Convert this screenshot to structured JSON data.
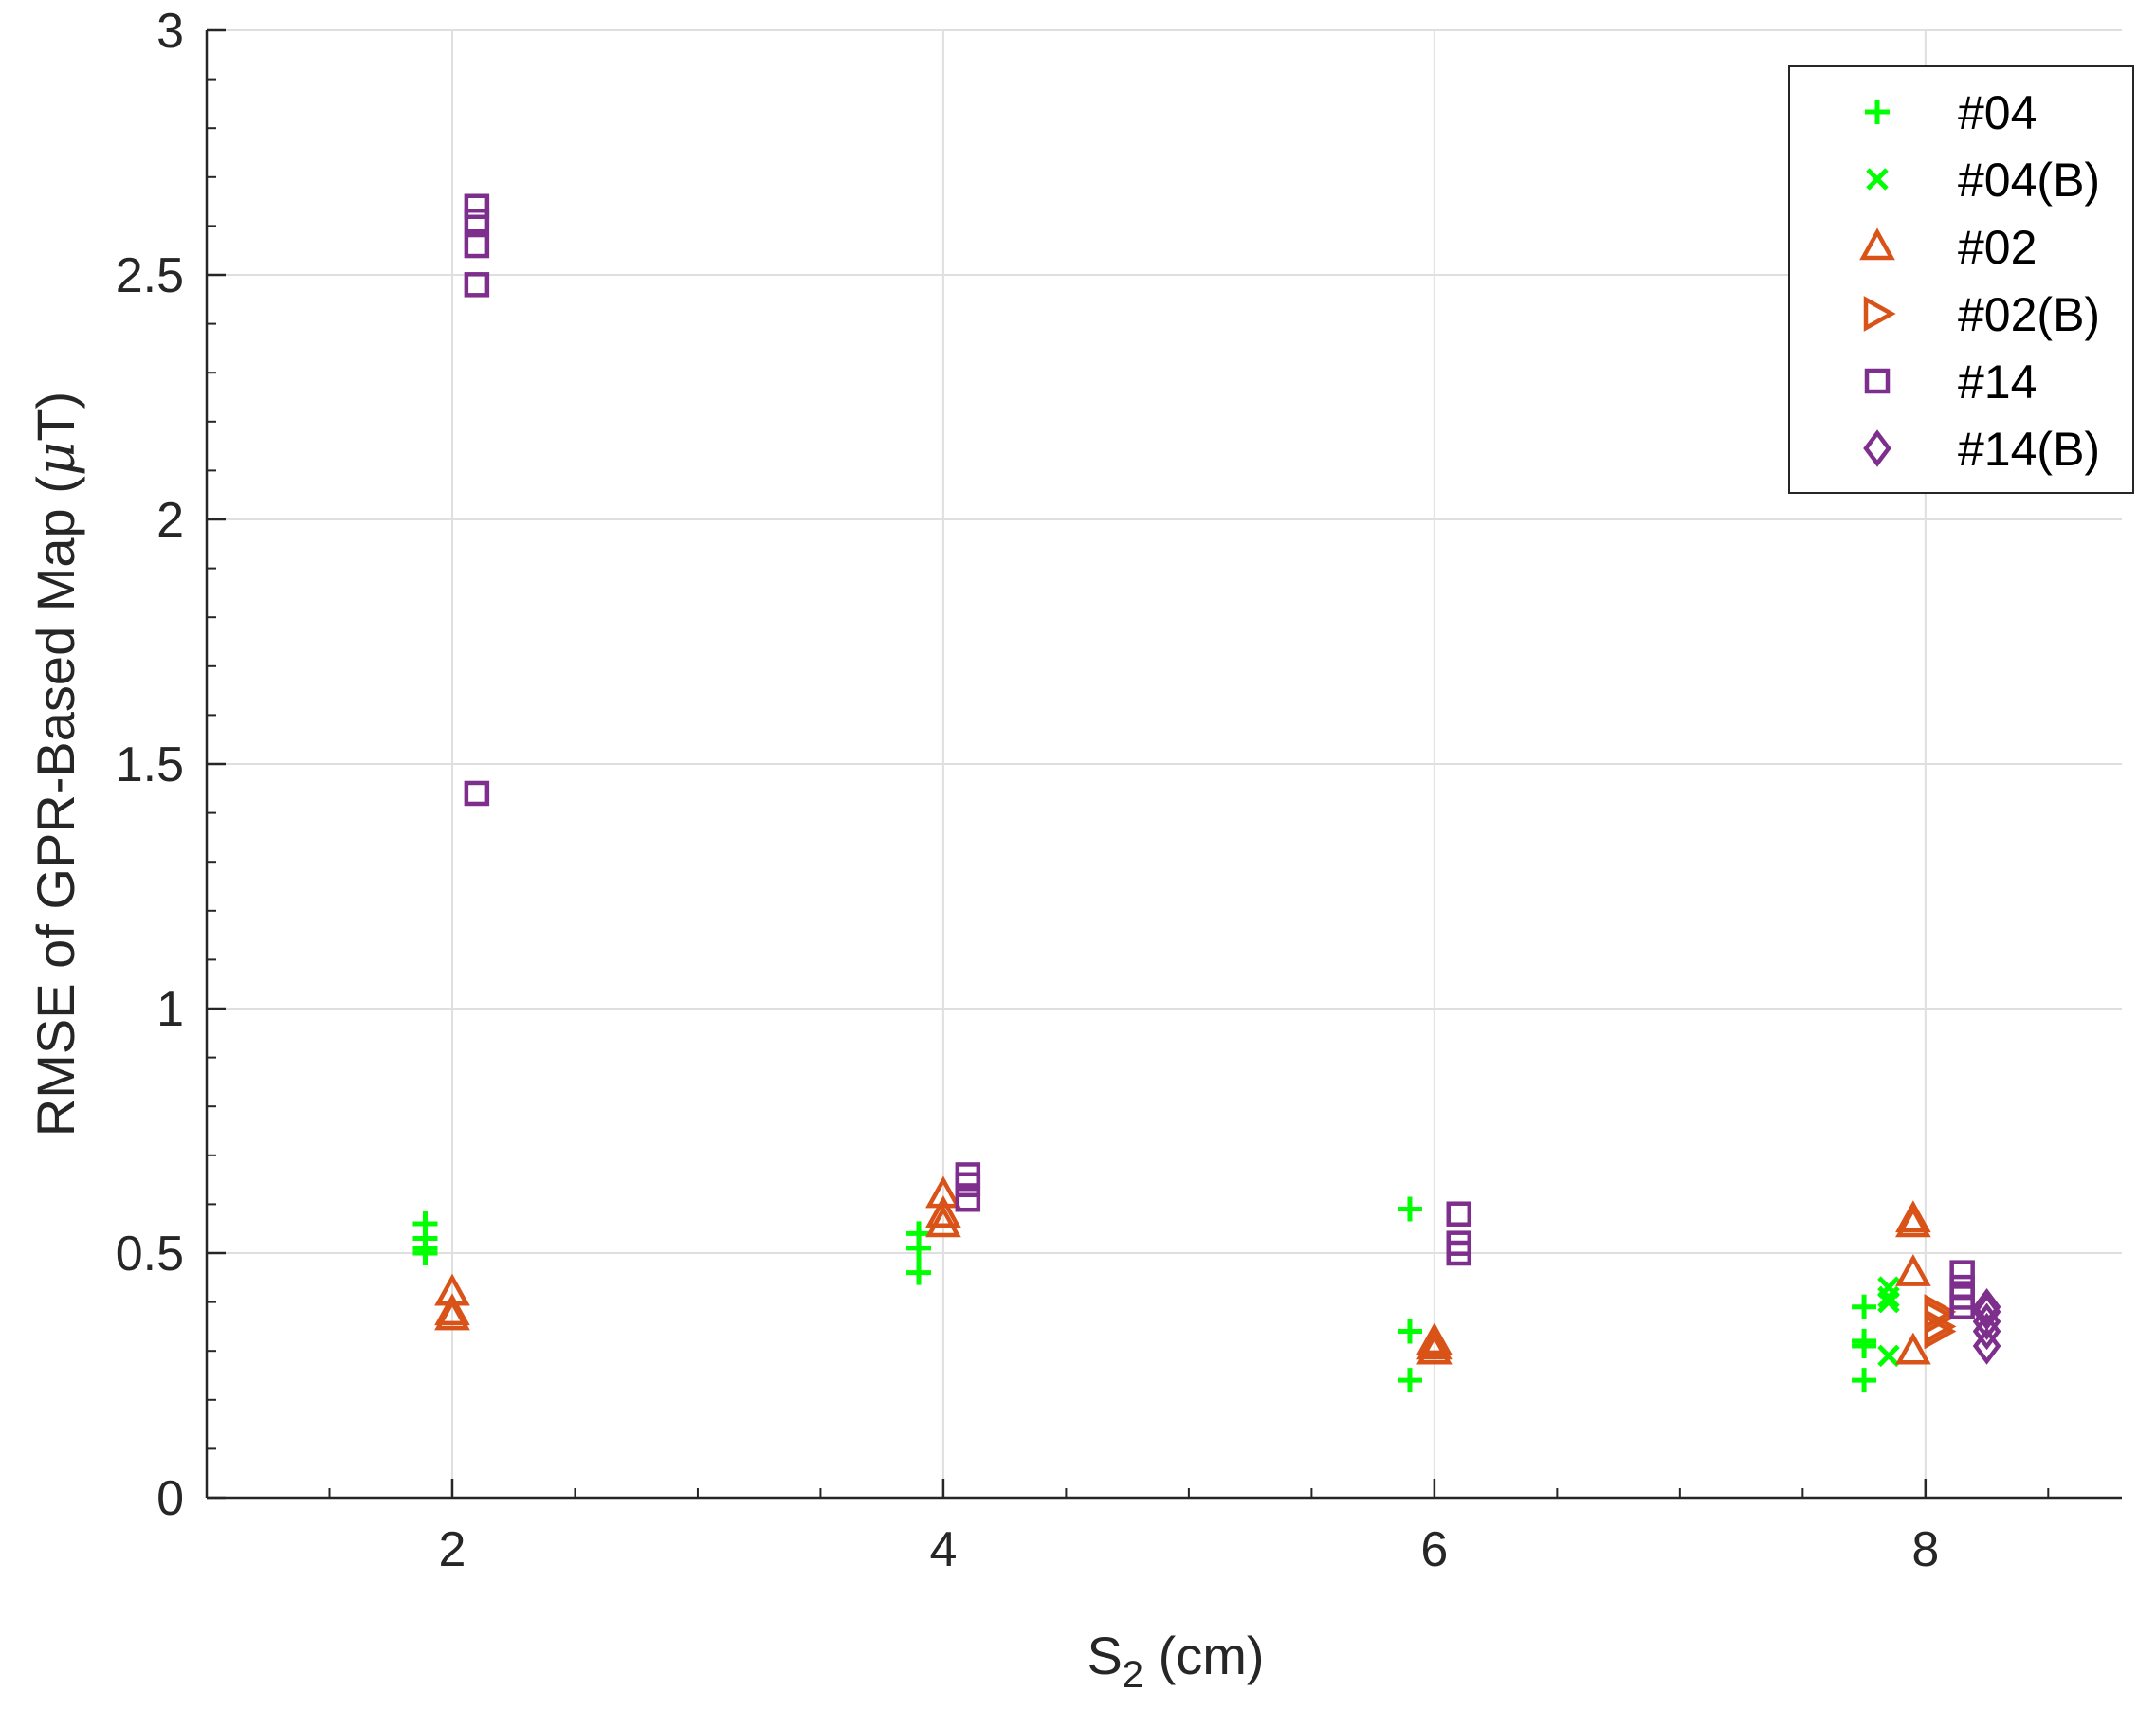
{
  "chart_data": {
    "type": "scatter",
    "title": "",
    "xlabel": {
      "main": "S",
      "sub": "2",
      "rest": " (cm)"
    },
    "ylabel": {
      "main": "RMSE of GPR-Based Map (",
      "greek": "μ",
      "rest": "T)"
    },
    "xlim": [
      1,
      8.8
    ],
    "ylim": [
      0,
      3
    ],
    "xticks": [
      2,
      4,
      6,
      8
    ],
    "xtick_labels": [
      "2",
      "4",
      "6",
      "8"
    ],
    "yticks": [
      0,
      0.5,
      1,
      1.5,
      2,
      2.5,
      3
    ],
    "ytick_labels": [
      "0",
      "0.5",
      "1",
      "1.5",
      "2",
      "2.5",
      "3"
    ],
    "grid": true,
    "legend_position": "top-right",
    "series": [
      {
        "name": "#04",
        "marker": "plus",
        "color": "#00ff00",
        "x": [
          1.89,
          1.89,
          1.89,
          1.89,
          3.9,
          3.9,
          3.9,
          5.9,
          5.9,
          5.9,
          7.75,
          7.75,
          7.75,
          7.75
        ],
        "y": [
          0.56,
          0.53,
          0.51,
          0.5,
          0.54,
          0.51,
          0.46,
          0.59,
          0.34,
          0.24,
          0.39,
          0.32,
          0.31,
          0.24
        ]
      },
      {
        "name": "#04(B)",
        "marker": "x",
        "color": "#00ff00",
        "x": [
          7.85,
          7.85,
          7.85,
          7.85
        ],
        "y": [
          0.43,
          0.41,
          0.4,
          0.29
        ]
      },
      {
        "name": "#02",
        "marker": "triangle-up",
        "color": "#d95319",
        "x": [
          2.0,
          2.0,
          2.0,
          4.0,
          4.0,
          4.0,
          6.0,
          6.0,
          6.0,
          7.95,
          7.95,
          7.95,
          7.95
        ],
        "y": [
          0.42,
          0.38,
          0.37,
          0.62,
          0.58,
          0.56,
          0.32,
          0.31,
          0.3,
          0.57,
          0.56,
          0.46,
          0.3
        ]
      },
      {
        "name": "#02(B)",
        "marker": "triangle-right",
        "color": "#d95319",
        "x": [
          8.05,
          8.05,
          8.05,
          8.05
        ],
        "y": [
          0.38,
          0.37,
          0.35,
          0.34
        ]
      },
      {
        "name": "#14",
        "marker": "square",
        "color": "#7e2f8e",
        "x": [
          2.1,
          2.1,
          2.1,
          2.1,
          2.1,
          4.1,
          4.1,
          4.1,
          6.1,
          6.1,
          6.1,
          8.15,
          8.15,
          8.15,
          8.15
        ],
        "y": [
          2.64,
          2.61,
          2.56,
          2.48,
          1.44,
          0.66,
          0.64,
          0.61,
          0.58,
          0.52,
          0.5,
          0.46,
          0.43,
          0.41,
          0.39
        ]
      },
      {
        "name": "#14(B)",
        "marker": "diamond",
        "color": "#7e2f8e",
        "x": [
          8.25,
          8.25,
          8.25,
          8.25,
          8.25
        ],
        "y": [
          0.39,
          0.38,
          0.36,
          0.34,
          0.31
        ]
      }
    ]
  }
}
